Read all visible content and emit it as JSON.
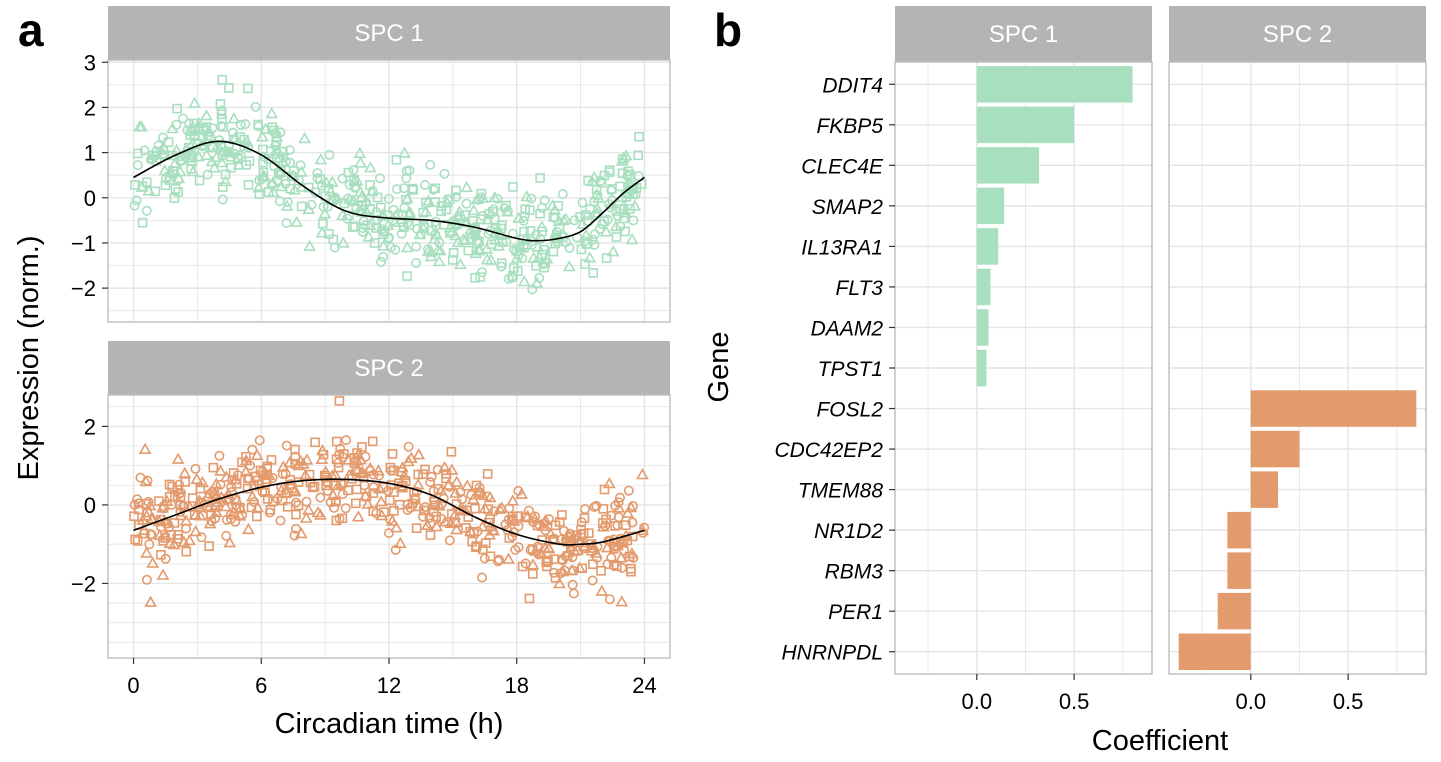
{
  "panels": {
    "a": {
      "letter": "a"
    },
    "b": {
      "letter": "b"
    }
  },
  "colors": {
    "spc1": "#a8dfbf",
    "spc2": "#e39a6c",
    "strip_bg": "#b4b4b4",
    "strip_text": "#ffffff",
    "grid": "#e4e4e4",
    "frame": "#bdbdbd",
    "fit_line": "#000000"
  },
  "chart_data": [
    {
      "type": "scatter",
      "facet": "SPC 1",
      "xlabel": "Circadian time (h)",
      "ylabel": "Expression (norm.)",
      "xticks": [
        0,
        6,
        12,
        18,
        24
      ],
      "xtick_labels": [
        "0",
        "6",
        "12",
        "18",
        "24"
      ],
      "yticks": [
        -2,
        -1,
        0,
        1,
        2,
        3
      ],
      "ytick_labels": [
        "−2",
        "−1",
        "0",
        "1",
        "2",
        "3"
      ],
      "xlim": [
        -1.2,
        25.2
      ],
      "ylim": [
        -2.75,
        3.05
      ],
      "marker_shapes": [
        "circle",
        "triangle",
        "square"
      ],
      "point_count": 600,
      "point_spread_sd": 0.52,
      "smooth_fit": {
        "x": [
          0,
          2,
          4,
          6,
          8,
          10,
          12,
          14,
          16,
          18,
          19,
          20,
          21,
          22,
          23,
          24
        ],
        "y": [
          0.45,
          0.95,
          1.25,
          0.95,
          0.25,
          -0.3,
          -0.45,
          -0.5,
          -0.65,
          -0.9,
          -0.95,
          -0.9,
          -0.75,
          -0.35,
          0.1,
          0.45
        ]
      },
      "grid": true
    },
    {
      "type": "scatter",
      "facet": "SPC 2",
      "xlabel": "Circadian time (h)",
      "ylabel": "Expression (norm.)",
      "xticks": [
        0,
        6,
        12,
        18,
        24
      ],
      "xtick_labels": [
        "0",
        "6",
        "12",
        "18",
        "24"
      ],
      "yticks": [
        -2,
        0,
        2
      ],
      "ytick_labels": [
        "−2",
        "0",
        "2"
      ],
      "xlim": [
        -1.2,
        25.2
      ],
      "ylim": [
        -3.9,
        2.8
      ],
      "marker_shapes": [
        "circle",
        "triangle",
        "square"
      ],
      "point_count": 600,
      "point_spread_sd": 0.6,
      "smooth_fit": {
        "x": [
          0,
          2,
          4,
          6,
          8,
          10,
          12,
          14,
          16,
          18,
          20,
          21,
          22,
          24
        ],
        "y": [
          -0.65,
          -0.25,
          0.15,
          0.45,
          0.62,
          0.65,
          0.55,
          0.25,
          -0.3,
          -0.75,
          -1.0,
          -1.0,
          -0.95,
          -0.65
        ]
      },
      "grid": true
    },
    {
      "type": "bar",
      "orientation": "horizontal",
      "xlabel": "Coefficient",
      "ylabel": "Gene",
      "categories": [
        "DDIT4",
        "FKBP5",
        "CLEC4E",
        "SMAP2",
        "IL13RA1",
        "FLT3",
        "DAAM2",
        "TPST1",
        "FOSL2",
        "CDC42EP2",
        "TMEM88",
        "NR1D2",
        "RBM3",
        "PER1",
        "HNRNPDL"
      ],
      "xticks": [
        0.0,
        0.5
      ],
      "xtick_labels": [
        "0.0",
        "0.5"
      ],
      "xlim": [
        -0.42,
        0.9
      ],
      "facets": [
        {
          "name": "SPC 1",
          "values": [
            0.8,
            0.5,
            0.32,
            0.14,
            0.11,
            0.07,
            0.06,
            0.05,
            null,
            null,
            null,
            null,
            null,
            null,
            null
          ]
        },
        {
          "name": "SPC 2",
          "values": [
            null,
            null,
            null,
            null,
            null,
            null,
            null,
            null,
            0.85,
            0.25,
            0.14,
            -0.12,
            -0.12,
            -0.17,
            -0.37
          ]
        }
      ],
      "grid": true
    }
  ]
}
